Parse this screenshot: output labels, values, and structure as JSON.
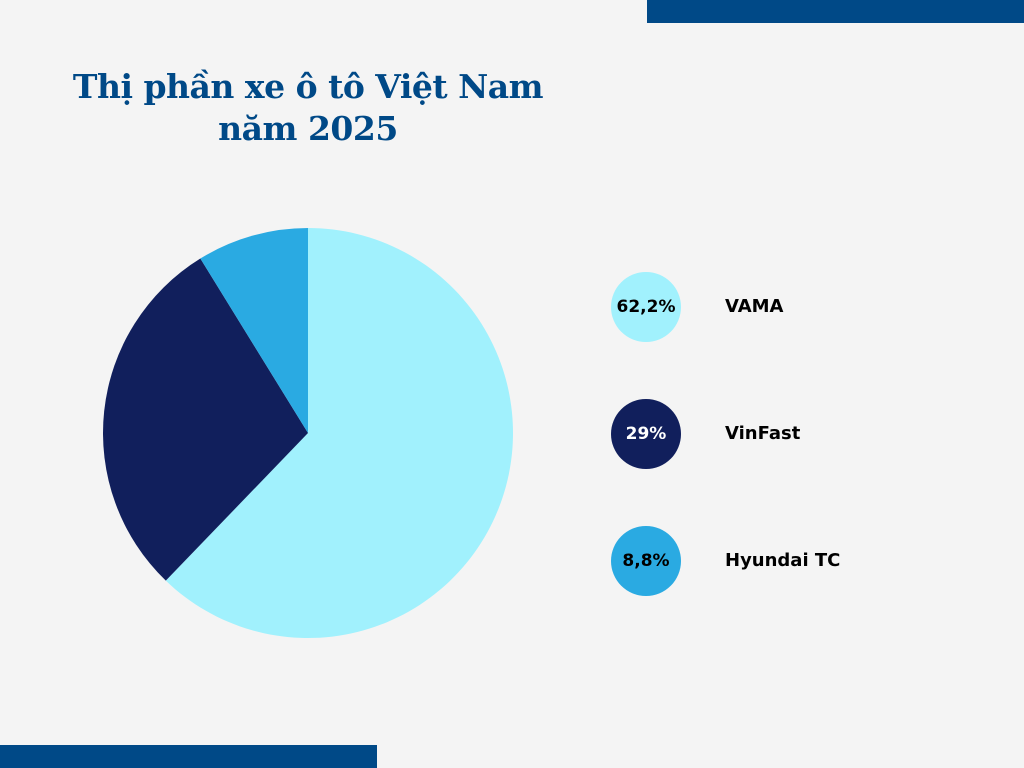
{
  "title": {
    "line1": "Thị phần xe ô tô Việt Nam",
    "line2": "năm 2025"
  },
  "colors": {
    "background": "#f4f4f4",
    "accent_bar": "#004987",
    "title": "#004987",
    "vama": "#a1f1fd",
    "vinfast": "#111f5c",
    "hyundai": "#2aaae2"
  },
  "legend": [
    {
      "value_label": "62,2%",
      "label": "VAMA",
      "color": "#a1f1fd",
      "text_color": "#000000"
    },
    {
      "value_label": "29%",
      "label": "VinFast",
      "color": "#111f5c",
      "text_color": "#ffffff"
    },
    {
      "value_label": "8,8%",
      "label": "Hyundai TC",
      "color": "#2aaae2",
      "text_color": "#000000"
    }
  ],
  "chart_data": {
    "type": "pie",
    "title": "Thị phần xe ô tô Việt Nam năm 2025",
    "categories": [
      "VAMA",
      "VinFast",
      "Hyundai TC"
    ],
    "values": [
      62.2,
      29,
      8.8
    ],
    "unit": "%",
    "colors": [
      "#a1f1fd",
      "#111f5c",
      "#2aaae2"
    ],
    "start_angle": "12 o'clock",
    "direction": "clockwise",
    "legend_position": "right"
  }
}
